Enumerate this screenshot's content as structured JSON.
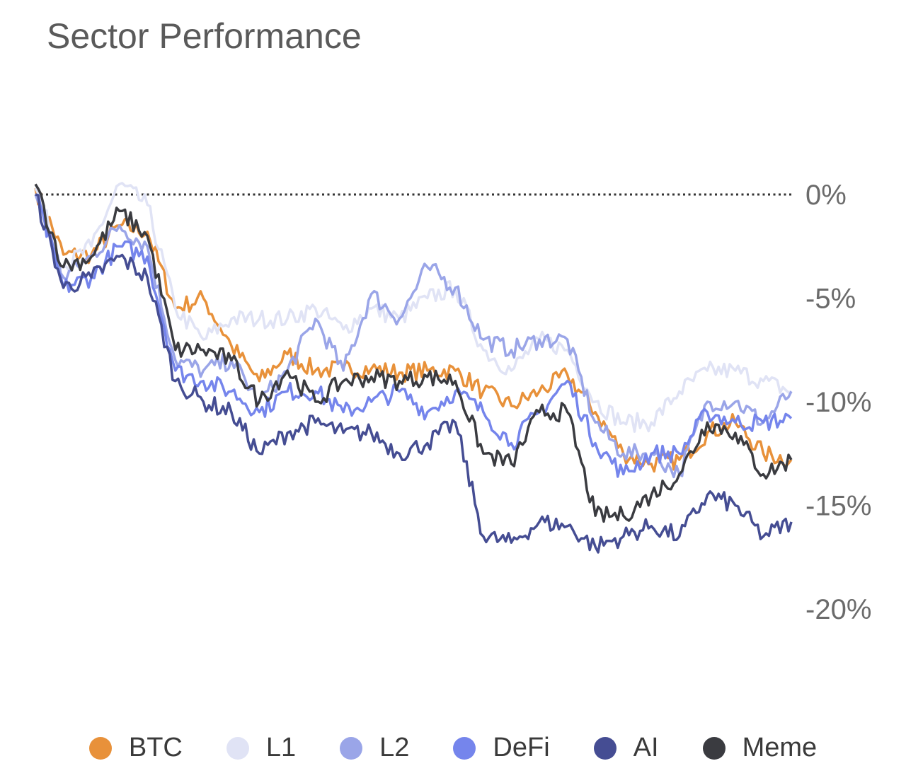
{
  "chart_data": {
    "type": "line",
    "title": "Sector Performance",
    "xlabel": "",
    "ylabel": "",
    "ylim": [
      -20,
      0
    ],
    "yticks": [
      "0%",
      "-5%",
      "-10%",
      "-15%",
      "-20%"
    ],
    "ytick_values": [
      0,
      -5,
      -10,
      -15,
      -20
    ],
    "y_axis_side": "right",
    "grid": false,
    "reference_line": {
      "value": 0,
      "style": "dotted"
    },
    "legend_placement": "bottom",
    "x": [
      0,
      1,
      2,
      3,
      4,
      5,
      6,
      7,
      8,
      9,
      10,
      11,
      12,
      13,
      14,
      15,
      16,
      17,
      18,
      19,
      20,
      21,
      22,
      23,
      24,
      25,
      26,
      27
    ],
    "series": [
      {
        "name": "BTC",
        "color": "#E8913A",
        "values": [
          0.3,
          -2.9,
          -2.9,
          -1.5,
          -1.8,
          -5.5,
          -5,
          -7.3,
          -9,
          -7.7,
          -8.5,
          -8.4,
          -8.4,
          -8.6,
          -8.5,
          -8.5,
          -9.5,
          -10.2,
          -9.5,
          -8.7,
          -10.5,
          -12.5,
          -13,
          -12.8,
          -11.5,
          -11,
          -12.5,
          -12.8
        ]
      },
      {
        "name": "L1",
        "color": "#E0E3F5",
        "values": [
          0.3,
          -3.5,
          -2.5,
          0.5,
          -0.5,
          -5.5,
          -7,
          -6,
          -6,
          -6,
          -5.5,
          -6.5,
          -5.5,
          -6,
          -5,
          -4.5,
          -7.5,
          -8.5,
          -7,
          -7.5,
          -10,
          -11,
          -11,
          -9.5,
          -8.5,
          -8.5,
          -9,
          -9.5
        ]
      },
      {
        "name": "L2",
        "color": "#9AA5E8",
        "values": [
          0,
          -4,
          -3,
          -1.5,
          -2.5,
          -8,
          -8.5,
          -8,
          -10,
          -8.5,
          -6,
          -8.5,
          -4.8,
          -6,
          -3.5,
          -4.5,
          -7,
          -7.5,
          -7,
          -7,
          -11,
          -12.5,
          -12.5,
          -13.5,
          -10,
          -10,
          -11,
          -9.5
        ]
      },
      {
        "name": "DeFi",
        "color": "#7585EC",
        "values": [
          0,
          -4.5,
          -4,
          -2.5,
          -3,
          -8.5,
          -9,
          -9.5,
          -10.5,
          -9.5,
          -9.5,
          -10.5,
          -10,
          -9.5,
          -10.5,
          -9.5,
          -10.5,
          -12,
          -10.5,
          -9,
          -12,
          -13.5,
          -12.5,
          -12.5,
          -10.5,
          -11,
          -11,
          -10.8
        ]
      },
      {
        "name": "AI",
        "color": "#454D93",
        "values": [
          0,
          -4.5,
          -4,
          -3,
          -4,
          -9,
          -10,
          -10.5,
          -12.5,
          -11.5,
          -11,
          -11.5,
          -11.5,
          -12.5,
          -12,
          -11,
          -16.5,
          -16.8,
          -15.8,
          -16,
          -17,
          -16.5,
          -16,
          -16.5,
          -14.5,
          -15,
          -16.5,
          -15.8
        ]
      },
      {
        "name": "Meme",
        "color": "#3A3B40",
        "values": [
          0.5,
          -3.5,
          -3,
          -0.8,
          -2,
          -7.5,
          -7.5,
          -8,
          -10,
          -8.5,
          -10,
          -9,
          -8.8,
          -9,
          -8.8,
          -9,
          -12.5,
          -13,
          -10.5,
          -10.5,
          -15.5,
          -15.5,
          -14.5,
          -13.5,
          -11,
          -11.5,
          -13.5,
          -12.8
        ]
      }
    ]
  }
}
